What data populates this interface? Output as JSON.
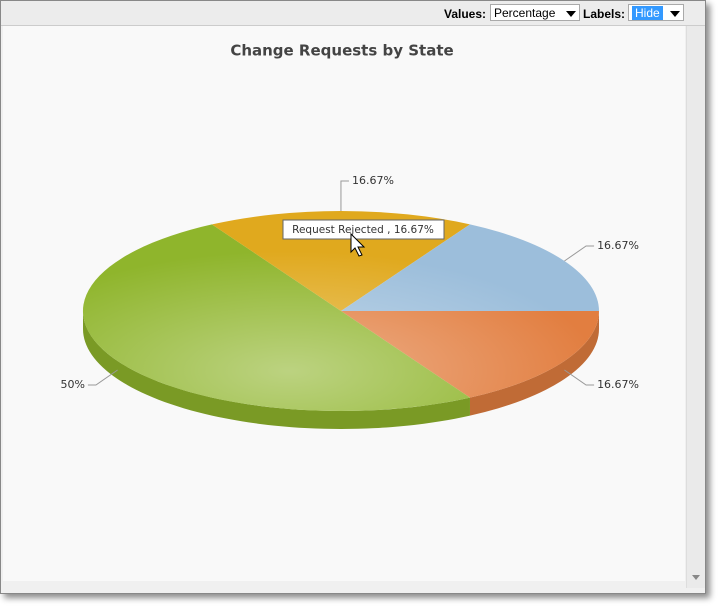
{
  "toolbar": {
    "values_label": "Values:",
    "values_option": "Percentage",
    "labels_label": "Labels:",
    "labels_option": "Hide"
  },
  "chart_data": {
    "type": "pie",
    "title": "Change Requests by State",
    "values": [
      16.67,
      50,
      16.67,
      16.67
    ],
    "value_labels": [
      "16.67%",
      "50%",
      "16.67%",
      "16.67%"
    ],
    "colors": [
      "#e27e40",
      "#8fb52c",
      "#e0a91e",
      "#9cbedb"
    ],
    "tooltip": "Request Rejected , 16.67%"
  }
}
